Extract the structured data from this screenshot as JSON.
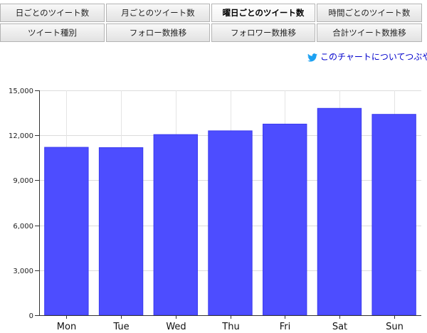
{
  "tabs": {
    "row1": [
      "日ごとのツイート数",
      "月ごとのツイート数",
      "曜日ごとのツイート数",
      "時間ごとのツイート数"
    ],
    "row2": [
      "ツイート種別",
      "フォロー数推移",
      "フォロワー数推移",
      "合計ツイート数推移"
    ],
    "active": "曜日ごとのツイート数"
  },
  "share": {
    "icon": "twitter-bird-icon",
    "label": "このチャートについてつぶや",
    "color": "#0000cc"
  },
  "chart_data": {
    "type": "bar",
    "categories": [
      "Mon",
      "Tue",
      "Wed",
      "Thu",
      "Fri",
      "Sat",
      "Sun"
    ],
    "values": [
      11200,
      11180,
      12050,
      12300,
      12750,
      13800,
      13400
    ],
    "ylim": [
      0,
      15000
    ],
    "yticks": [
      0,
      3000,
      6000,
      9000,
      12000,
      15000
    ],
    "ytick_labels": [
      "0",
      "3,000",
      "6,000",
      "9,000",
      "12,000",
      "15,000"
    ],
    "grid": true,
    "bar_color": "#4d4dff"
  }
}
